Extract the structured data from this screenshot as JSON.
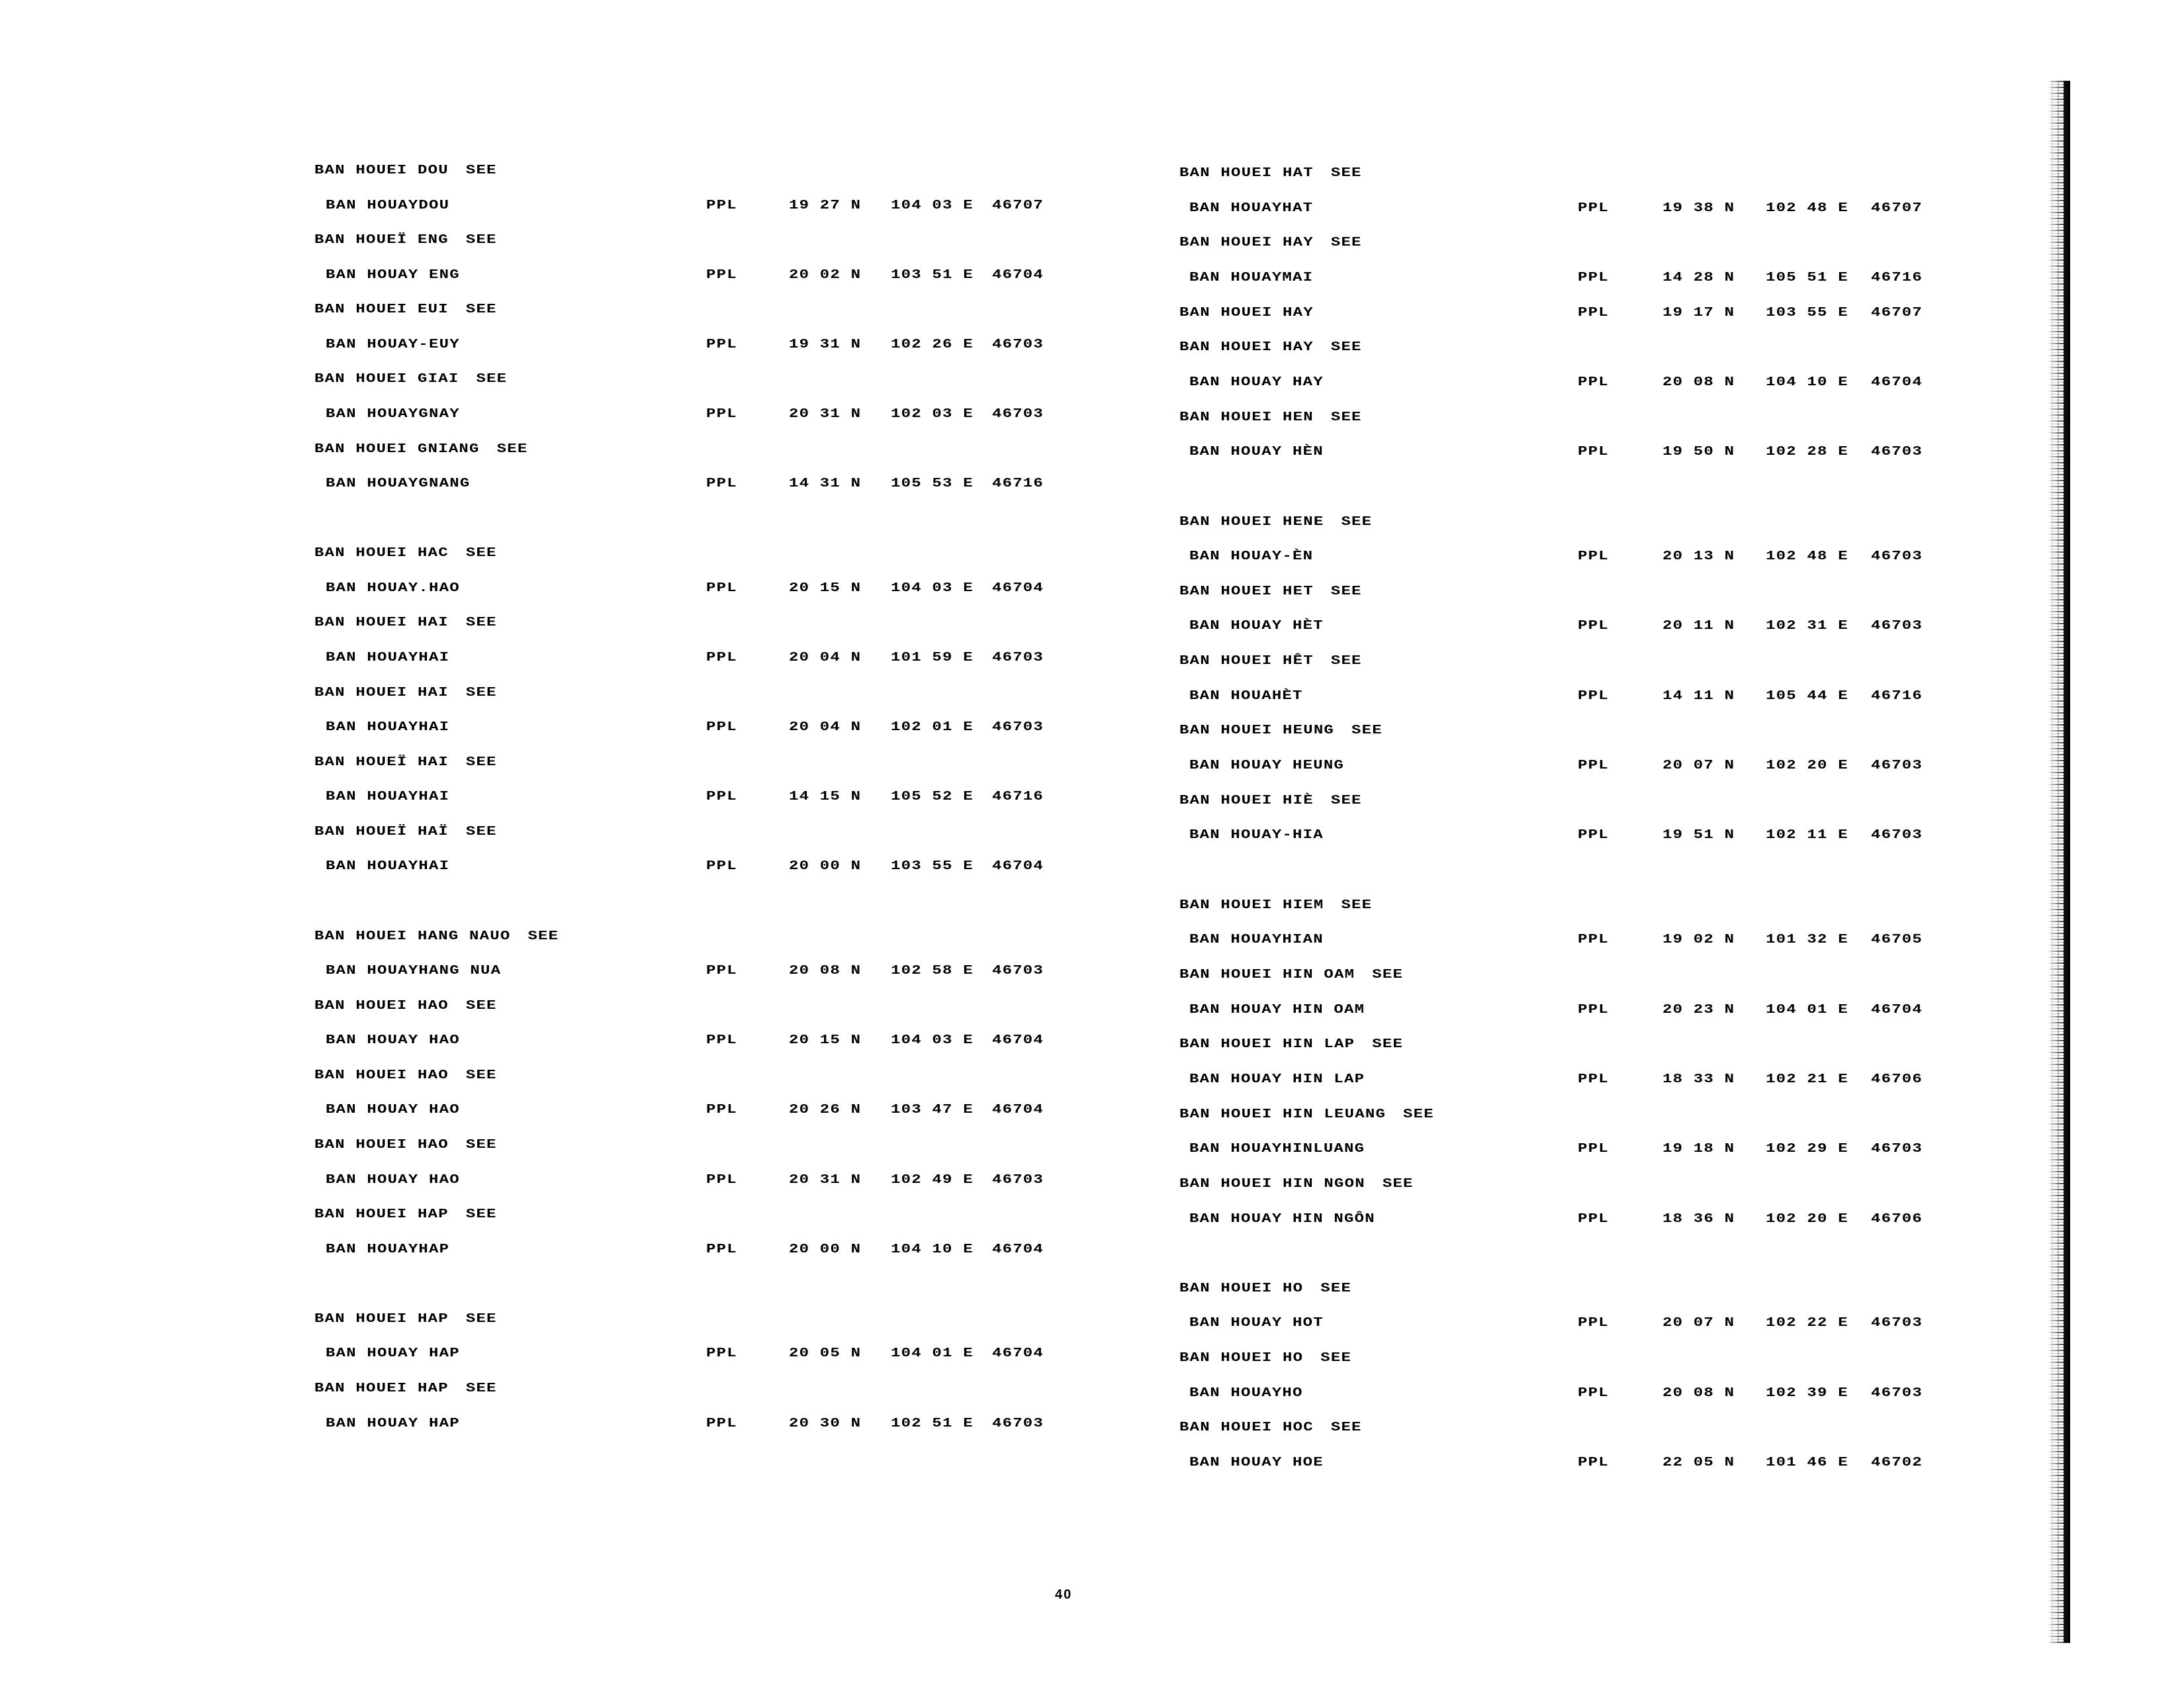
{
  "page_number": "40",
  "columns": [
    {
      "groups": [
        [
          {
            "name": "BAN HOUEI DOU",
            "see": "SEE"
          },
          {
            "name": "BAN HOUAYDOU",
            "feature": "PPL",
            "lat": "19 27 N",
            "lon": "104 03 E",
            "code": "46707"
          },
          {
            "name": "BAN HOUEÏ ENG",
            "see": "SEE"
          },
          {
            "name": "BAN HOUAY ENG",
            "feature": "PPL",
            "lat": "20 02 N",
            "lon": "103 51 E",
            "code": "46704"
          },
          {
            "name": "BAN HOUEI EUI",
            "see": "SEE"
          },
          {
            "name": "BAN HOUAY-EUY",
            "feature": "PPL",
            "lat": "19 31 N",
            "lon": "102 26 E",
            "code": "46703"
          },
          {
            "name": "BAN HOUEI GIAI",
            "see": "SEE"
          },
          {
            "name": "BAN HOUAYGNAY",
            "feature": "PPL",
            "lat": "20 31 N",
            "lon": "102 03 E",
            "code": "46703"
          },
          {
            "name": "BAN HOUEI GNIANG",
            "see": "SEE"
          },
          {
            "name": "BAN HOUAYGNANG",
            "feature": "PPL",
            "lat": "14 31 N",
            "lon": "105 53 E",
            "code": "46716"
          }
        ],
        [
          {
            "name": "BAN HOUEI HAC",
            "see": "SEE"
          },
          {
            "name": "BAN HOUAY.HAO",
            "feature": "PPL",
            "lat": "20 15 N",
            "lon": "104 03 E",
            "code": "46704"
          },
          {
            "name": "BAN HOUEI HAI",
            "see": "SEE"
          },
          {
            "name": "BAN HOUAYHAI",
            "feature": "PPL",
            "lat": "20 04 N",
            "lon": "101 59 E",
            "code": "46703"
          },
          {
            "name": "BAN HOUEI HAI",
            "see": "SEE"
          },
          {
            "name": "BAN HOUAYHAI",
            "feature": "PPL",
            "lat": "20 04 N",
            "lon": "102 01 E",
            "code": "46703"
          },
          {
            "name": "BAN HOUEÏ HAI",
            "see": "SEE"
          },
          {
            "name": "BAN HOUAYHAI",
            "feature": "PPL",
            "lat": "14 15 N",
            "lon": "105 52 E",
            "code": "46716"
          },
          {
            "name": "BAN HOUEÏ HAÏ",
            "see": "SEE"
          },
          {
            "name": "BAN HOUAYHAI",
            "feature": "PPL",
            "lat": "20 00 N",
            "lon": "103 55 E",
            "code": "46704"
          }
        ],
        [
          {
            "name": "BAN HOUEI HANG NAUO",
            "see": "SEE"
          },
          {
            "name": "BAN HOUAYHANG NUA",
            "feature": "PPL",
            "lat": "20 08 N",
            "lon": "102 58 E",
            "code": "46703"
          },
          {
            "name": "BAN HOUEI HAO",
            "see": "SEE"
          },
          {
            "name": "BAN HOUAY HAO",
            "feature": "PPL",
            "lat": "20 15 N",
            "lon": "104 03 E",
            "code": "46704"
          },
          {
            "name": "BAN HOUEI HAO",
            "see": "SEE"
          },
          {
            "name": "BAN HOUAY HAO",
            "feature": "PPL",
            "lat": "20 26 N",
            "lon": "103 47 E",
            "code": "46704"
          },
          {
            "name": "BAN HOUEI HAO",
            "see": "SEE"
          },
          {
            "name": "BAN HOUAY HAO",
            "feature": "PPL",
            "lat": "20 31 N",
            "lon": "102 49 E",
            "code": "46703"
          },
          {
            "name": "BAN HOUEI HAP",
            "see": "SEE"
          },
          {
            "name": "BAN HOUAYHAP",
            "feature": "PPL",
            "lat": "20 00 N",
            "lon": "104 10 E",
            "code": "46704"
          }
        ],
        [
          {
            "name": "BAN HOUEI HAP",
            "see": "SEE"
          },
          {
            "name": "BAN HOUAY HAP",
            "feature": "PPL",
            "lat": "20 05 N",
            "lon": "104 01 E",
            "code": "46704"
          },
          {
            "name": "BAN HOUEI HAP",
            "see": "SEE"
          },
          {
            "name": "BAN HOUAY HAP",
            "feature": "PPL",
            "lat": "20 30 N",
            "lon": "102 51 E",
            "code": "46703"
          }
        ]
      ]
    },
    {
      "groups": [
        [
          {
            "name": "BAN HOUEI HAT",
            "see": "SEE"
          },
          {
            "name": "BAN HOUAYHAT",
            "feature": "PPL",
            "lat": "19 38 N",
            "lon": "102 48 E",
            "code": "46707"
          },
          {
            "name": "BAN HOUEI HAY",
            "see": "SEE"
          },
          {
            "name": "BAN HOUAYMAI",
            "feature": "PPL",
            "lat": "14 28 N",
            "lon": "105 51 E",
            "code": "46716"
          },
          {
            "name": "BAN HOUEI HAY",
            "feature": "PPL",
            "lat": "19 17 N",
            "lon": "103 55 E",
            "code": "46707"
          },
          {
            "name": "BAN HOUEI HAY",
            "see": "SEE"
          },
          {
            "name": "BAN HOUAY HAY",
            "feature": "PPL",
            "lat": "20 08 N",
            "lon": "104 10 E",
            "code": "46704"
          },
          {
            "name": "BAN HOUEI HEN",
            "see": "SEE"
          },
          {
            "name": "BAN HOUAY HÈN",
            "feature": "PPL",
            "lat": "19 50 N",
            "lon": "102 28 E",
            "code": "46703"
          }
        ],
        [
          {
            "name": "BAN HOUEI HENE",
            "see": "SEE"
          },
          {
            "name": "BAN HOUAY-ÈN",
            "feature": "PPL",
            "lat": "20 13 N",
            "lon": "102 48 E",
            "code": "46703"
          },
          {
            "name": "BAN HOUEI HET",
            "see": "SEE"
          },
          {
            "name": "BAN HOUAY HÈT",
            "feature": "PPL",
            "lat": "20 11 N",
            "lon": "102 31 E",
            "code": "46703"
          },
          {
            "name": "BAN HOUEI HÊT",
            "see": "SEE"
          },
          {
            "name": "BAN HOUAHÈT",
            "feature": "PPL",
            "lat": "14 11 N",
            "lon": "105 44 E",
            "code": "46716"
          },
          {
            "name": "BAN HOUEI HEUNG",
            "see": "SEE"
          },
          {
            "name": "BAN HOUAY HEUNG",
            "feature": "PPL",
            "lat": "20 07 N",
            "lon": "102 20 E",
            "code": "46703"
          },
          {
            "name": "BAN HOUEI HIÈ",
            "see": "SEE"
          },
          {
            "name": "BAN HOUAY-HIA",
            "feature": "PPL",
            "lat": "19 51 N",
            "lon": "102 11 E",
            "code": "46703"
          }
        ],
        [
          {
            "name": "BAN HOUEI HIEM",
            "see": "SEE"
          },
          {
            "name": "BAN HOUAYHIAN",
            "feature": "PPL",
            "lat": "19 02 N",
            "lon": "101 32 E",
            "code": "46705"
          },
          {
            "name": "BAN HOUEI HIN OAM",
            "see": "SEE"
          },
          {
            "name": "BAN HOUAY HIN OAM",
            "feature": "PPL",
            "lat": "20 23 N",
            "lon": "104 01 E",
            "code": "46704"
          },
          {
            "name": "BAN HOUEI HIN LAP",
            "see": "SEE"
          },
          {
            "name": "BAN HOUAY HIN LAP",
            "feature": "PPL",
            "lat": "18 33 N",
            "lon": "102 21 E",
            "code": "46706"
          },
          {
            "name": "BAN HOUEI HIN LEUANG",
            "see": "SEE"
          },
          {
            "name": "BAN HOUAYHINLUANG",
            "feature": "PPL",
            "lat": "19 18 N",
            "lon": "102 29 E",
            "code": "46703"
          },
          {
            "name": "BAN HOUEI HIN NGON",
            "see": "SEE"
          },
          {
            "name": "BAN HOUAY HIN NGÔN",
            "feature": "PPL",
            "lat": "18 36 N",
            "lon": "102 20 E",
            "code": "46706"
          }
        ],
        [
          {
            "name": "BAN HOUEI HO",
            "see": "SEE"
          },
          {
            "name": "BAN HOUAY HOT",
            "feature": "PPL",
            "lat": "20 07 N",
            "lon": "102 22 E",
            "code": "46703"
          },
          {
            "name": "BAN HOUEI HO",
            "see": "SEE"
          },
          {
            "name": "BAN HOUAYHO",
            "feature": "PPL",
            "lat": "20 08 N",
            "lon": "102 39 E",
            "code": "46703"
          },
          {
            "name": "BAN HOUEI HOC",
            "see": "SEE"
          },
          {
            "name": "BAN HOUAY HOE",
            "feature": "PPL",
            "lat": "22 05 N",
            "lon": "101 46 E",
            "code": "46702"
          }
        ]
      ]
    }
  ]
}
